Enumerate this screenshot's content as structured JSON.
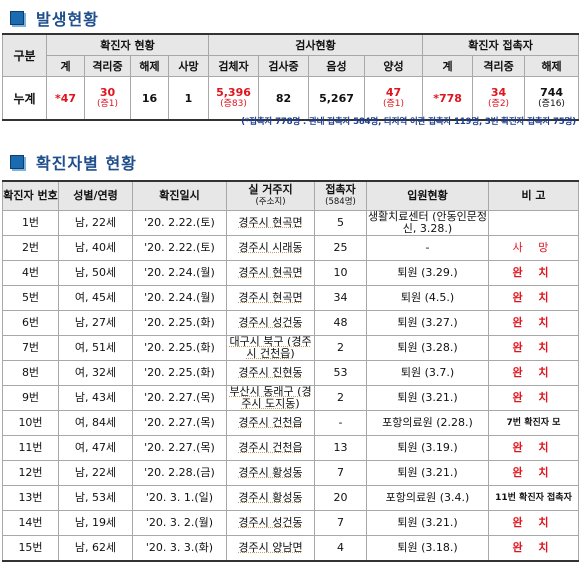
{
  "section1": {
    "title": "발생현황"
  },
  "summary": {
    "headers": {
      "category": "구분",
      "confirmed_group": "확진자 현황",
      "test_group": "검사현황",
      "contact_group": "확진자 접촉자",
      "confirmed_cols": [
        "계",
        "격리중",
        "해제",
        "사망"
      ],
      "test_cols": [
        "검체자",
        "검사중",
        "음성",
        "양성"
      ],
      "contact_cols": [
        "계",
        "격리중",
        "해제"
      ]
    },
    "row_label": "누계",
    "confirmed_total": "*47",
    "confirmed_isolating": "30",
    "confirmed_isolating_delta": "(증1)",
    "confirmed_released": "16",
    "confirmed_deaths": "1",
    "tested": "5,396",
    "tested_delta": "(증83)",
    "testing": "82",
    "negative": "5,267",
    "positive": "47",
    "positive_delta": "(증1)",
    "contact_total": "*778",
    "contact_isolating": "34",
    "contact_isolating_delta": "(증2)",
    "contact_released": "744",
    "contact_released_delta": "(증16)"
  },
  "footnote": "(*접촉자 778명 : 관내 접촉자 584명, 타지역 이관 접촉자 119명, 3번 확진자 접촉자 75명)",
  "section2": {
    "title": "확진자별 현황"
  },
  "cases_table": {
    "headers": {
      "no": "확진자 번호",
      "gender_age": "성별/연령",
      "date": "확진일시",
      "residence": "실 거주지",
      "residence_sub": "(주소지)",
      "contacts": "접촉자",
      "contacts_sub": "(584명)",
      "admission": "입원현황",
      "note": "비 고"
    },
    "rows": [
      {
        "no": "1번",
        "ga": "남, 22세",
        "date": "'20. 2.22.(토)",
        "res": "경주시 현곡면",
        "contacts": "5",
        "adm": "생활치료센터 (안동인문정신, 3.28.)",
        "note": ""
      },
      {
        "no": "2번",
        "ga": "남, 40세",
        "date": "'20. 2.22.(토)",
        "res": "경주시 시래동",
        "contacts": "25",
        "adm": "-",
        "note": "사 망"
      },
      {
        "no": "4번",
        "ga": "남, 50세",
        "date": "'20. 2.24.(월)",
        "res": "경주시 현곡면",
        "contacts": "10",
        "adm": "퇴원 (3.29.)",
        "note": "완 치"
      },
      {
        "no": "5번",
        "ga": "여, 45세",
        "date": "'20. 2.24.(월)",
        "res": "경주시 현곡면",
        "contacts": "34",
        "adm": "퇴원 (4.5.)",
        "note": "완 치"
      },
      {
        "no": "6번",
        "ga": "남, 27세",
        "date": "'20. 2.25.(화)",
        "res": "경주시 성건동",
        "contacts": "48",
        "adm": "퇴원 (3.27.)",
        "note": "완 치"
      },
      {
        "no": "7번",
        "ga": "여, 51세",
        "date": "'20. 2.25.(화)",
        "res": "대구시 북구 (경주시 건천읍)",
        "contacts": "2",
        "adm": "퇴원 (3.28.)",
        "note": "완 치"
      },
      {
        "no": "8번",
        "ga": "여, 32세",
        "date": "'20. 2.25.(화)",
        "res": "경주시 진현동",
        "contacts": "53",
        "adm": "퇴원 (3.7.)",
        "note": "완 치"
      },
      {
        "no": "9번",
        "ga": "남, 43세",
        "date": "'20. 2.27.(목)",
        "res": "부산시 동래구 (경주시 도지동)",
        "contacts": "2",
        "adm": "퇴원 (3.21.)",
        "note": "완 치"
      },
      {
        "no": "10번",
        "ga": "여, 84세",
        "date": "'20. 2.27.(목)",
        "res": "경주시 건천읍",
        "contacts": "-",
        "adm": "포항의료원 (2.28.)",
        "note": "7번 확진자 모"
      },
      {
        "no": "11번",
        "ga": "여, 47세",
        "date": "'20. 2.27.(목)",
        "res": "경주시 건천읍",
        "contacts": "13",
        "adm": "퇴원 (3.19.)",
        "note": "완 치"
      },
      {
        "no": "12번",
        "ga": "남, 22세",
        "date": "'20. 2.28.(금)",
        "res": "경주시 황성동",
        "contacts": "7",
        "adm": "퇴원 (3.21.)",
        "note": "완 치"
      },
      {
        "no": "13번",
        "ga": "남, 53세",
        "date": "'20. 3. 1.(일)",
        "res": "경주시 황성동",
        "contacts": "20",
        "adm": "포항의료원 (3.4.)",
        "note": "11번 확진자 접촉자"
      },
      {
        "no": "14번",
        "ga": "남, 19세",
        "date": "'20. 3. 2.(월)",
        "res": "경주시 성건동",
        "contacts": "7",
        "adm": "퇴원 (3.21.)",
        "note": "완 치"
      },
      {
        "no": "15번",
        "ga": "남, 62세",
        "date": "'20. 3. 3.(화)",
        "res": "경주시 양남면",
        "contacts": "4",
        "adm": "퇴원 (3.18.)",
        "note": "완 치"
      }
    ]
  }
}
